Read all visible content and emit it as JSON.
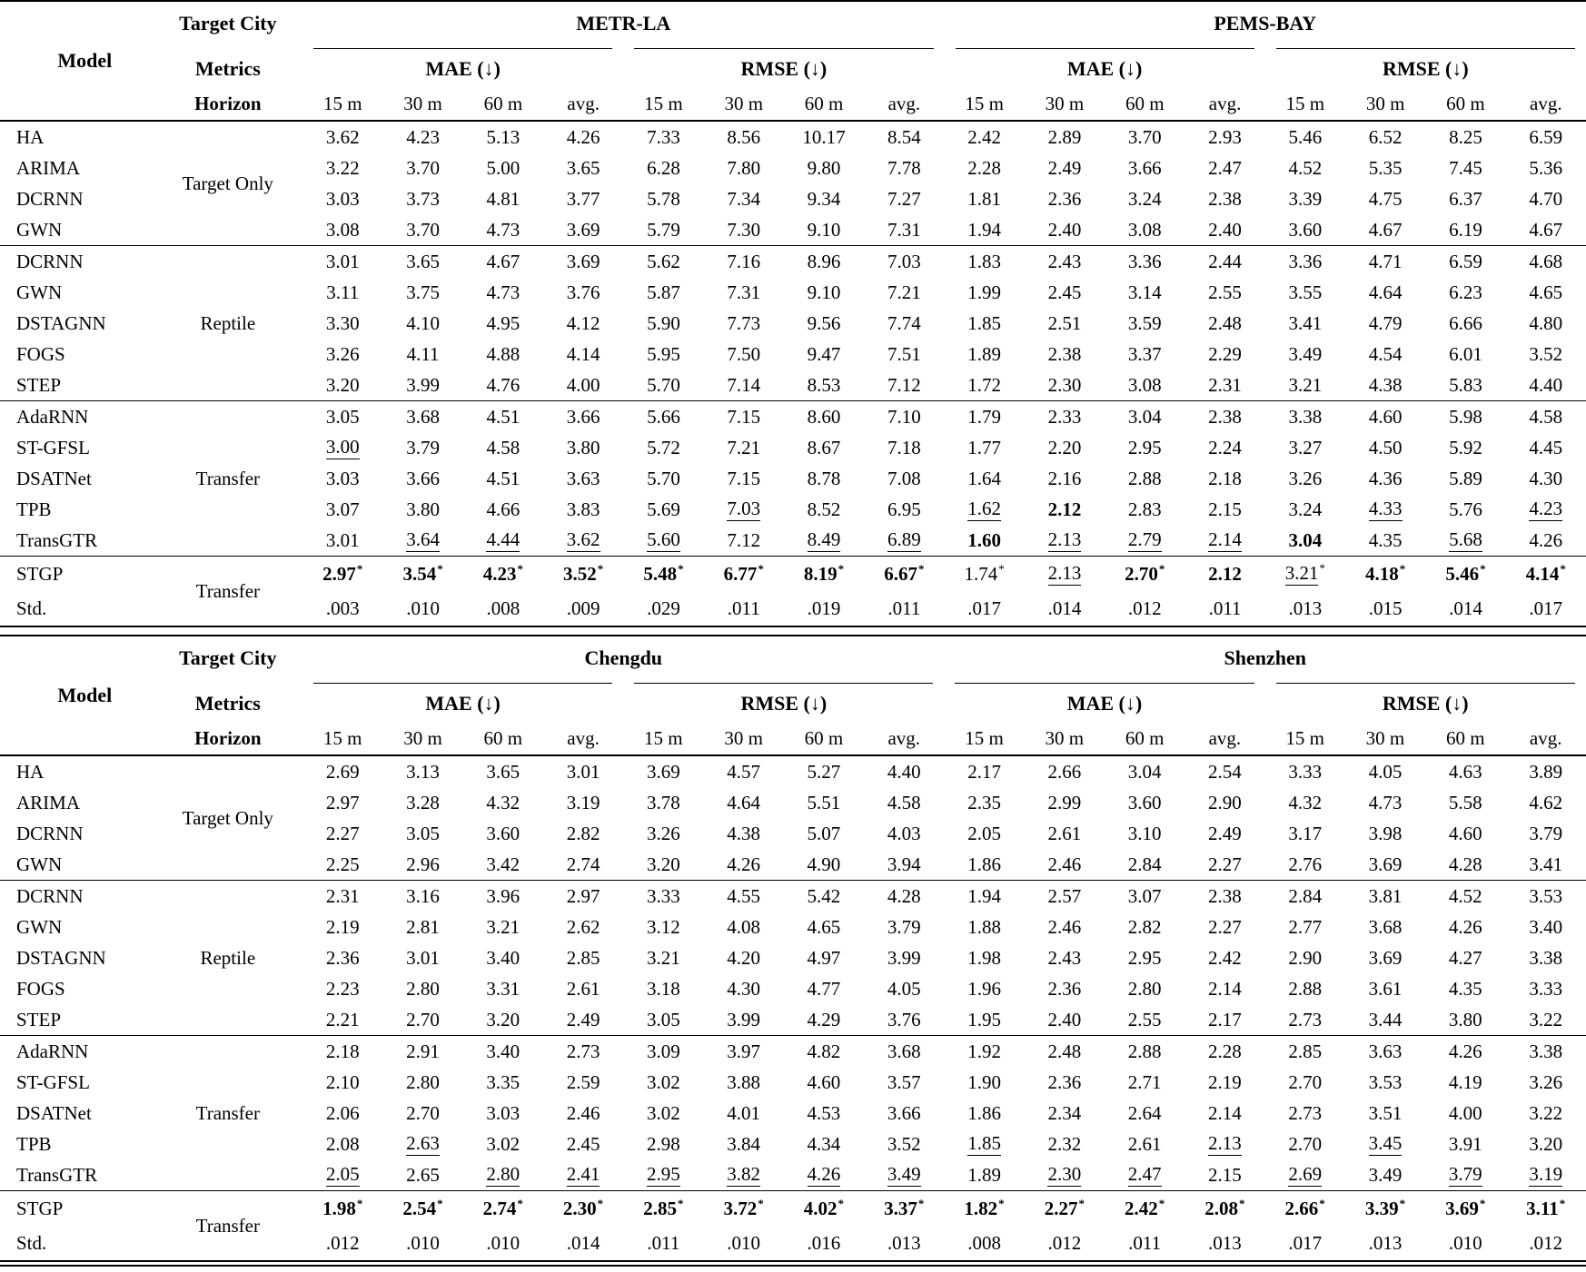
{
  "header": {
    "model_label": "Model",
    "row_labels": [
      "Target City",
      "Metrics",
      "Horizon"
    ],
    "metric_labels": [
      "MAE (↓)",
      "RMSE (↓)"
    ],
    "horizon_labels": [
      "15 m",
      "30 m",
      "60 m",
      "avg."
    ],
    "format_flags": {
      "b": "bold-best",
      "u": "underline-second-best",
      "s": "asterisk-significance"
    }
  },
  "tables": [
    {
      "cities": [
        "METR-LA",
        "PEMS-BAY"
      ],
      "groups": [
        {
          "method": "Target Only",
          "rows": [
            {
              "model": "HA",
              "values": [
                "3.62",
                "4.23",
                "5.13",
                "4.26",
                "7.33",
                "8.56",
                "10.17",
                "8.54",
                "2.42",
                "2.89",
                "3.70",
                "2.93",
                "5.46",
                "6.52",
                "8.25",
                "6.59"
              ]
            },
            {
              "model": "ARIMA",
              "values": [
                "3.22",
                "3.70",
                "5.00",
                "3.65",
                "6.28",
                "7.80",
                "9.80",
                "7.78",
                "2.28",
                "2.49",
                "3.66",
                "2.47",
                "4.52",
                "5.35",
                "7.45",
                "5.36"
              ]
            },
            {
              "model": "DCRNN",
              "values": [
                "3.03",
                "3.73",
                "4.81",
                "3.77",
                "5.78",
                "7.34",
                "9.34",
                "7.27",
                "1.81",
                "2.36",
                "3.24",
                "2.38",
                "3.39",
                "4.75",
                "6.37",
                "4.70"
              ]
            },
            {
              "model": "GWN",
              "values": [
                "3.08",
                "3.70",
                "4.73",
                "3.69",
                "5.79",
                "7.30",
                "9.10",
                "7.31",
                "1.94",
                "2.40",
                "3.08",
                "2.40",
                "3.60",
                "4.67",
                "6.19",
                "4.67"
              ]
            }
          ]
        },
        {
          "method": "Reptile",
          "rows": [
            {
              "model": "DCRNN",
              "values": [
                "3.01",
                "3.65",
                "4.67",
                "3.69",
                "5.62",
                "7.16",
                "8.96",
                "7.03",
                "1.83",
                "2.43",
                "3.36",
                "2.44",
                "3.36",
                "4.71",
                "6.59",
                "4.68"
              ]
            },
            {
              "model": "GWN",
              "values": [
                "3.11",
                "3.75",
                "4.73",
                "3.76",
                "5.87",
                "7.31",
                "9.10",
                "7.21",
                "1.99",
                "2.45",
                "3.14",
                "2.55",
                "3.55",
                "4.64",
                "6.23",
                "4.65"
              ]
            },
            {
              "model": "DSTAGNN",
              "values": [
                "3.30",
                "4.10",
                "4.95",
                "4.12",
                "5.90",
                "7.73",
                "9.56",
                "7.74",
                "1.85",
                "2.51",
                "3.59",
                "2.48",
                "3.41",
                "4.79",
                "6.66",
                "4.80"
              ]
            },
            {
              "model": "FOGS",
              "values": [
                "3.26",
                "4.11",
                "4.88",
                "4.14",
                "5.95",
                "7.50",
                "9.47",
                "7.51",
                "1.89",
                "2.38",
                "3.37",
                "2.29",
                "3.49",
                "4.54",
                "6.01",
                "3.52"
              ]
            },
            {
              "model": "STEP",
              "values": [
                "3.20",
                "3.99",
                "4.76",
                "4.00",
                "5.70",
                "7.14",
                "8.53",
                "7.12",
                "1.72",
                "2.30",
                "3.08",
                "2.31",
                "3.21",
                "4.38",
                "5.83",
                "4.40"
              ]
            }
          ]
        },
        {
          "method": "Transfer",
          "rows": [
            {
              "model": "AdaRNN",
              "values": [
                "3.05",
                "3.68",
                "4.51",
                "3.66",
                "5.66",
                "7.15",
                "8.60",
                "7.10",
                "1.79",
                "2.33",
                "3.04",
                "2.38",
                "3.38",
                "4.60",
                "5.98",
                "4.58"
              ]
            },
            {
              "model": "ST-GFSL",
              "values": [
                "3.00|u",
                "3.79",
                "4.58",
                "3.80",
                "5.72",
                "7.21",
                "8.67",
                "7.18",
                "1.77",
                "2.20",
                "2.95",
                "2.24",
                "3.27",
                "4.50",
                "5.92",
                "4.45"
              ]
            },
            {
              "model": "DSATNet",
              "values": [
                "3.03",
                "3.66",
                "4.51",
                "3.63",
                "5.70",
                "7.15",
                "8.78",
                "7.08",
                "1.64",
                "2.16",
                "2.88",
                "2.18",
                "3.26",
                "4.36",
                "5.89",
                "4.30"
              ]
            },
            {
              "model": "TPB",
              "values": [
                "3.07",
                "3.80",
                "4.66",
                "3.83",
                "5.69",
                "7.03|u",
                "8.52",
                "6.95",
                "1.62|u",
                "2.12|b",
                "2.83",
                "2.15",
                "3.24",
                "4.33|u",
                "5.76",
                "4.23|u"
              ]
            },
            {
              "model": "TransGTR",
              "values": [
                "3.01",
                "3.64|u",
                "4.44|u",
                "3.62|u",
                "5.60|u",
                "7.12",
                "8.49|u",
                "6.89|u",
                "1.60|b",
                "2.13|u",
                "2.79|u",
                "2.14|u",
                "3.04|b",
                "4.35",
                "5.68|u",
                "4.26"
              ]
            }
          ]
        },
        {
          "method": "Transfer",
          "rows": [
            {
              "model": "STGP",
              "values": [
                "2.97|bs",
                "3.54|bs",
                "4.23|bs",
                "3.52|bs",
                "5.48|bs",
                "6.77|bs",
                "8.19|bs",
                "6.67|bs",
                "1.74|s",
                "2.13|u",
                "2.70|bs",
                "2.12|b",
                "3.21|us",
                "4.18|bs",
                "5.46|bs",
                "4.14|bs"
              ]
            },
            {
              "model": "Std.",
              "values": [
                ".003",
                ".010",
                ".008",
                ".009",
                ".029",
                ".011",
                ".019",
                ".011",
                ".017",
                ".014",
                ".012",
                ".011",
                ".013",
                ".015",
                ".014",
                ".017"
              ]
            }
          ]
        }
      ]
    },
    {
      "cities": [
        "Chengdu",
        "Shenzhen"
      ],
      "groups": [
        {
          "method": "Target Only",
          "rows": [
            {
              "model": "HA",
              "values": [
                "2.69",
                "3.13",
                "3.65",
                "3.01",
                "3.69",
                "4.57",
                "5.27",
                "4.40",
                "2.17",
                "2.66",
                "3.04",
                "2.54",
                "3.33",
                "4.05",
                "4.63",
                "3.89"
              ]
            },
            {
              "model": "ARIMA",
              "values": [
                "2.97",
                "3.28",
                "4.32",
                "3.19",
                "3.78",
                "4.64",
                "5.51",
                "4.58",
                "2.35",
                "2.99",
                "3.60",
                "2.90",
                "4.32",
                "4.73",
                "5.58",
                "4.62"
              ]
            },
            {
              "model": "DCRNN",
              "values": [
                "2.27",
                "3.05",
                "3.60",
                "2.82",
                "3.26",
                "4.38",
                "5.07",
                "4.03",
                "2.05",
                "2.61",
                "3.10",
                "2.49",
                "3.17",
                "3.98",
                "4.60",
                "3.79"
              ]
            },
            {
              "model": "GWN",
              "values": [
                "2.25",
                "2.96",
                "3.42",
                "2.74",
                "3.20",
                "4.26",
                "4.90",
                "3.94",
                "1.86",
                "2.46",
                "2.84",
                "2.27",
                "2.76",
                "3.69",
                "4.28",
                "3.41"
              ]
            }
          ]
        },
        {
          "method": "Reptile",
          "rows": [
            {
              "model": "DCRNN",
              "values": [
                "2.31",
                "3.16",
                "3.96",
                "2.97",
                "3.33",
                "4.55",
                "5.42",
                "4.28",
                "1.94",
                "2.57",
                "3.07",
                "2.38",
                "2.84",
                "3.81",
                "4.52",
                "3.53"
              ]
            },
            {
              "model": "GWN",
              "values": [
                "2.19",
                "2.81",
                "3.21",
                "2.62",
                "3.12",
                "4.08",
                "4.65",
                "3.79",
                "1.88",
                "2.46",
                "2.82",
                "2.27",
                "2.77",
                "3.68",
                "4.26",
                "3.40"
              ]
            },
            {
              "model": "DSTAGNN",
              "values": [
                "2.36",
                "3.01",
                "3.40",
                "2.85",
                "3.21",
                "4.20",
                "4.97",
                "3.99",
                "1.98",
                "2.43",
                "2.95",
                "2.42",
                "2.90",
                "3.69",
                "4.27",
                "3.38"
              ]
            },
            {
              "model": "FOGS",
              "values": [
                "2.23",
                "2.80",
                "3.31",
                "2.61",
                "3.18",
                "4.30",
                "4.77",
                "4.05",
                "1.96",
                "2.36",
                "2.80",
                "2.14",
                "2.88",
                "3.61",
                "4.35",
                "3.33"
              ]
            },
            {
              "model": "STEP",
              "values": [
                "2.21",
                "2.70",
                "3.20",
                "2.49",
                "3.05",
                "3.99",
                "4.29",
                "3.76",
                "1.95",
                "2.40",
                "2.55",
                "2.17",
                "2.73",
                "3.44",
                "3.80",
                "3.22"
              ]
            }
          ]
        },
        {
          "method": "Transfer",
          "rows": [
            {
              "model": "AdaRNN",
              "values": [
                "2.18",
                "2.91",
                "3.40",
                "2.73",
                "3.09",
                "3.97",
                "4.82",
                "3.68",
                "1.92",
                "2.48",
                "2.88",
                "2.28",
                "2.85",
                "3.63",
                "4.26",
                "3.38"
              ]
            },
            {
              "model": "ST-GFSL",
              "values": [
                "2.10",
                "2.80",
                "3.35",
                "2.59",
                "3.02",
                "3.88",
                "4.60",
                "3.57",
                "1.90",
                "2.36",
                "2.71",
                "2.19",
                "2.70",
                "3.53",
                "4.19",
                "3.26"
              ]
            },
            {
              "model": "DSATNet",
              "values": [
                "2.06",
                "2.70",
                "3.03",
                "2.46",
                "3.02",
                "4.01",
                "4.53",
                "3.66",
                "1.86",
                "2.34",
                "2.64",
                "2.14",
                "2.73",
                "3.51",
                "4.00",
                "3.22"
              ]
            },
            {
              "model": "TPB",
              "values": [
                "2.08",
                "2.63|u",
                "3.02",
                "2.45",
                "2.98",
                "3.84",
                "4.34",
                "3.52",
                "1.85|u",
                "2.32",
                "2.61",
                "2.13|u",
                "2.70",
                "3.45|u",
                "3.91",
                "3.20"
              ]
            },
            {
              "model": "TransGTR",
              "values": [
                "2.05|u",
                "2.65",
                "2.80|u",
                "2.41|u",
                "2.95|u",
                "3.82|u",
                "4.26|u",
                "3.49|u",
                "1.89",
                "2.30|u",
                "2.47|u",
                "2.15",
                "2.69|u",
                "3.49",
                "3.79|u",
                "3.19|u"
              ]
            }
          ]
        },
        {
          "method": "Transfer",
          "rows": [
            {
              "model": "STGP",
              "values": [
                "1.98|bs",
                "2.54|bs",
                "2.74|bs",
                "2.30|bs",
                "2.85|bs",
                "3.72|bs",
                "4.02|bs",
                "3.37|bs",
                "1.82|bs",
                "2.27|bs",
                "2.42|bs",
                "2.08|bs",
                "2.66|bs",
                "3.39|bs",
                "3.69|bs",
                "3.11|bs"
              ]
            },
            {
              "model": "Std.",
              "values": [
                ".012",
                ".010",
                ".010",
                ".014",
                ".011",
                ".010",
                ".016",
                ".013",
                ".008",
                ".012",
                ".011",
                ".013",
                ".017",
                ".013",
                ".010",
                ".012"
              ]
            }
          ]
        }
      ]
    }
  ]
}
